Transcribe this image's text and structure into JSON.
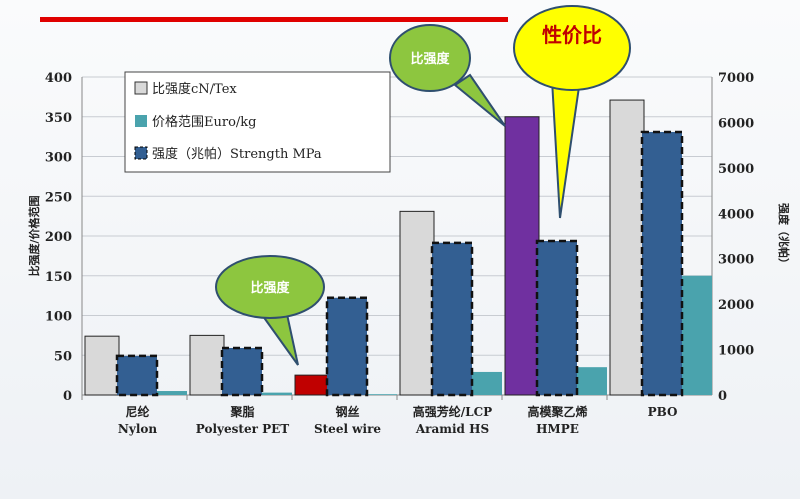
{
  "chart_data": {
    "type": "bar",
    "categories": [
      [
        "尼纶",
        "Nylon"
      ],
      [
        "聚脂",
        "Polyester PET"
      ],
      [
        "钢丝",
        "Steel wire"
      ],
      [
        "高强芳纶/LCP",
        "Aramid HS"
      ],
      [
        "高模聚乙烯",
        "HMPE"
      ],
      [
        "PBO",
        ""
      ]
    ],
    "ylabel": "比强度/价格范围",
    "y2label": "强度（兆帕）",
    "ylim": [
      0,
      400
    ],
    "y2lim": [
      0,
      7000
    ],
    "yticks": [
      0,
      50,
      100,
      150,
      200,
      250,
      300,
      350,
      400
    ],
    "y2ticks": [
      0,
      1000,
      2000,
      3000,
      4000,
      5000,
      6000,
      7000
    ],
    "grid": true,
    "legend_position": "top-left",
    "series": [
      {
        "name": "比强度cN/Tex",
        "axis": "left",
        "values": [
          74,
          75,
          25,
          231,
          350,
          371
        ],
        "color": "#d9d9d9",
        "highlight_colors": {
          "2": "#c00000",
          "4": "#7030a0"
        }
      },
      {
        "name": "价格范围Euro/kg",
        "axis": "left",
        "values": [
          5,
          3,
          1,
          29,
          35,
          150
        ],
        "color": "#4aa3ad"
      },
      {
        "name": "强度（兆帕）Strength MPa",
        "axis": "right",
        "values": [
          860,
          1035,
          2140,
          3350,
          3390,
          5790
        ],
        "color": "#335f92"
      }
    ],
    "annotations": [
      {
        "text": "比强度",
        "target": "HMPE"
      },
      {
        "text": "性价比",
        "target": "HMPE"
      },
      {
        "text": "比强度",
        "target": "Steel wire"
      }
    ]
  }
}
